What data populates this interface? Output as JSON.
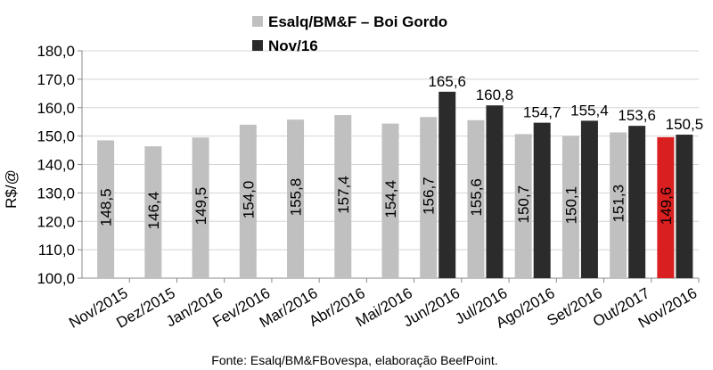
{
  "chart_data": {
    "type": "bar",
    "ylabel": "R$/@",
    "xlabel": "",
    "ylim": [
      100,
      180
    ],
    "yticks": [
      "100,0",
      "110,0",
      "120,0",
      "130,0",
      "140,0",
      "150,0",
      "160,0",
      "170,0",
      "180,0"
    ],
    "grid": true,
    "legend_position": "top",
    "categories": [
      "Nov/2015",
      "Dez/2015",
      "Jan/2016",
      "Fev/2016",
      "Mar/2016",
      "Abr/2016",
      "Mai/2016",
      "Jun/2016",
      "Jul/2016",
      "Ago/2016",
      "Set/2016",
      "Out/2017",
      "Nov/2016"
    ],
    "series": [
      {
        "name": "Esalq/BM&F – Boi Gordo",
        "color": "#c0c0c0",
        "values": [
          148.5,
          146.4,
          149.5,
          154.0,
          155.8,
          157.4,
          154.4,
          156.7,
          155.6,
          150.7,
          150.1,
          151.3,
          149.6
        ],
        "labels": [
          "148,5",
          "146,4",
          "149,5",
          "154,0",
          "155,8",
          "157,4",
          "154,4",
          "156,7",
          "155,6",
          "150,7",
          "150,1",
          "151,3",
          "149,6"
        ],
        "highlight": {
          "index": 12,
          "color": "#d91f1f"
        }
      },
      {
        "name": "Nov/16",
        "color": "#2b2b2b",
        "values": [
          null,
          null,
          null,
          null,
          null,
          null,
          null,
          165.6,
          160.8,
          154.7,
          155.4,
          153.6,
          150.5
        ],
        "labels": [
          "",
          "",
          "",
          "",
          "",
          "",
          "",
          "165,6",
          "160,8",
          "154,7",
          "155,4",
          "153,6",
          "150,5"
        ]
      }
    ],
    "source": "Fonte: Esalq/BM&FBovespa, elaboração BeefPoint."
  }
}
